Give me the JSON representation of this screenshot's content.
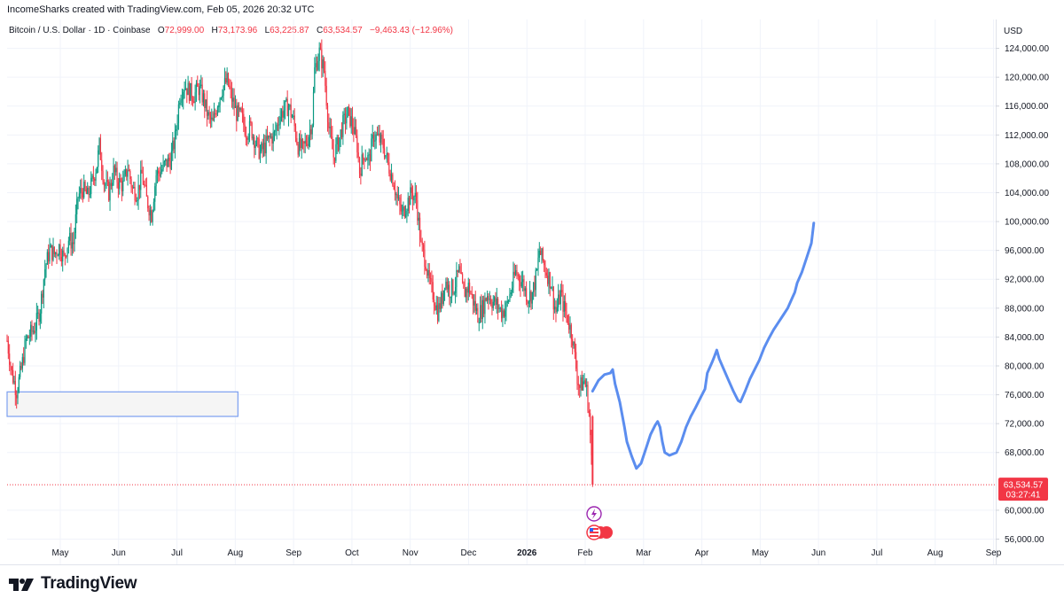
{
  "header": {
    "caption": "IncomeSharks created with TradingView.com, Feb 05, 2026 20:32 UTC"
  },
  "legend": {
    "symbol": "Bitcoin / U.S. Dollar · 1D · Coinbase",
    "o_label": "O",
    "o_value": "72,999.00",
    "h_label": "H",
    "h_value": "73,173.96",
    "l_label": "L",
    "l_value": "63,225.87",
    "c_label": "C",
    "c_value": "63,534.57",
    "change": "−9,463.43 (−12.96%)"
  },
  "currency": "USD",
  "price_tag": {
    "price": "63,534.57",
    "countdown": "03:27:41",
    "color": "#f23645"
  },
  "brand": {
    "name": "TradingView"
  },
  "colors": {
    "up": "#089981",
    "down": "#f23645",
    "projection": "#5b8def",
    "zone_border": "#7b9ff0",
    "zone_fill": "#f5f5f5"
  },
  "icons": [
    "flash-events-icon",
    "us-flag-event-icon"
  ],
  "chart_data": {
    "type": "candlestick",
    "y_axis": {
      "ticks": [
        "124,000.00",
        "120,000.00",
        "116,000.00",
        "112,000.00",
        "108,000.00",
        "104,000.00",
        "100,000.00",
        "96,000.00",
        "92,000.00",
        "88,000.00",
        "84,000.00",
        "80,000.00",
        "76,000.00",
        "72,000.00",
        "68,000.00",
        "60,000.00",
        "56,000.00"
      ],
      "range": [
        52500,
        128000
      ]
    },
    "x_axis": {
      "ticks": [
        "May",
        "Jun",
        "Jul",
        "Aug",
        "Sep",
        "Oct",
        "Nov",
        "Dec",
        "2026",
        "Feb",
        "Mar",
        "Apr",
        "May",
        "Jun",
        "Jul",
        "Aug",
        "Sep"
      ],
      "bold": [
        "2026"
      ]
    },
    "close_path": [
      [
        0,
        83500
      ],
      [
        4,
        79000
      ],
      [
        8,
        76500
      ],
      [
        12,
        79500
      ],
      [
        16,
        83500
      ],
      [
        20,
        84500
      ],
      [
        24,
        85500
      ],
      [
        28,
        88000
      ],
      [
        32,
        93500
      ],
      [
        36,
        96000
      ],
      [
        40,
        95500
      ],
      [
        44,
        96500
      ],
      [
        48,
        95000
      ],
      [
        52,
        97500
      ],
      [
        56,
        97000
      ],
      [
        60,
        103500
      ],
      [
        64,
        104500
      ],
      [
        68,
        103500
      ],
      [
        72,
        105500
      ],
      [
        76,
        108000
      ],
      [
        78,
        110500
      ],
      [
        82,
        105500
      ],
      [
        86,
        104000
      ],
      [
        90,
        107000
      ],
      [
        94,
        105500
      ],
      [
        98,
        105000
      ],
      [
        102,
        107500
      ],
      [
        106,
        104500
      ],
      [
        110,
        104000
      ],
      [
        114,
        106500
      ],
      [
        118,
        103000
      ],
      [
        122,
        101000
      ],
      [
        126,
        106500
      ],
      [
        130,
        107000
      ],
      [
        134,
        108000
      ],
      [
        138,
        108500
      ],
      [
        142,
        111500
      ],
      [
        146,
        117500
      ],
      [
        150,
        119000
      ],
      [
        154,
        118000
      ],
      [
        158,
        117500
      ],
      [
        162,
        118500
      ],
      [
        166,
        117000
      ],
      [
        170,
        114500
      ],
      [
        174,
        113500
      ],
      [
        178,
        116500
      ],
      [
        182,
        118500
      ],
      [
        186,
        119500
      ],
      [
        190,
        117000
      ],
      [
        194,
        115000
      ],
      [
        198,
        114500
      ],
      [
        202,
        112500
      ],
      [
        206,
        113000
      ],
      [
        210,
        111000
      ],
      [
        214,
        109500
      ],
      [
        218,
        110500
      ],
      [
        222,
        111500
      ],
      [
        226,
        112000
      ],
      [
        230,
        114500
      ],
      [
        234,
        115500
      ],
      [
        238,
        116000
      ],
      [
        242,
        114000
      ],
      [
        246,
        110500
      ],
      [
        250,
        110000
      ],
      [
        254,
        111500
      ],
      [
        258,
        114000
      ],
      [
        260,
        121000
      ],
      [
        264,
        123500
      ],
      [
        268,
        121000
      ],
      [
        272,
        113000
      ],
      [
        276,
        109000
      ],
      [
        280,
        111000
      ],
      [
        284,
        113500
      ],
      [
        288,
        115000
      ],
      [
        292,
        113500
      ],
      [
        296,
        110500
      ],
      [
        298,
        107000
      ],
      [
        302,
        109500
      ],
      [
        306,
        108500
      ],
      [
        310,
        112000
      ],
      [
        314,
        111500
      ],
      [
        318,
        110500
      ],
      [
        322,
        108000
      ],
      [
        326,
        106000
      ],
      [
        330,
        103000
      ],
      [
        334,
        101000
      ],
      [
        338,
        102500
      ],
      [
        342,
        104000
      ],
      [
        346,
        103000
      ],
      [
        350,
        96500
      ],
      [
        354,
        94500
      ],
      [
        356,
        92000
      ],
      [
        360,
        90000
      ],
      [
        364,
        87500
      ],
      [
        368,
        89500
      ],
      [
        370,
        92000
      ],
      [
        374,
        90500
      ],
      [
        378,
        91000
      ],
      [
        382,
        93000
      ],
      [
        386,
        90000
      ],
      [
        390,
        91000
      ],
      [
        394,
        89000
      ],
      [
        398,
        87000
      ],
      [
        402,
        88000
      ],
      [
        406,
        90000
      ],
      [
        410,
        89000
      ],
      [
        414,
        88500
      ],
      [
        418,
        87500
      ],
      [
        422,
        88000
      ],
      [
        426,
        90500
      ],
      [
        430,
        93000
      ],
      [
        434,
        92000
      ],
      [
        436,
        91500
      ],
      [
        440,
        89500
      ],
      [
        444,
        90000
      ],
      [
        448,
        93000
      ],
      [
        450,
        96000
      ],
      [
        452,
        95000
      ],
      [
        456,
        93000
      ],
      [
        460,
        91500
      ],
      [
        462,
        89000
      ],
      [
        464,
        87500
      ],
      [
        468,
        90000
      ],
      [
        470,
        88500
      ],
      [
        474,
        86500
      ],
      [
        478,
        84000
      ],
      [
        482,
        78500
      ],
      [
        484,
        77000
      ],
      [
        488,
        78000
      ],
      [
        490,
        76500
      ],
      [
        492,
        73500
      ],
      [
        495,
        63534.57
      ]
    ],
    "support_zone": {
      "top": 76400,
      "bottom": 73000,
      "start": "Apr",
      "end": "Aug"
    },
    "projection_path": [
      [
        495,
        76500
      ],
      [
        500,
        78000
      ],
      [
        505,
        78800
      ],
      [
        510,
        79000
      ],
      [
        512,
        79500
      ],
      [
        514,
        77500
      ],
      [
        518,
        75000
      ],
      [
        522,
        71500
      ],
      [
        524,
        69500
      ],
      [
        528,
        67500
      ],
      [
        532,
        65800
      ],
      [
        536,
        66500
      ],
      [
        540,
        68500
      ],
      [
        544,
        70500
      ],
      [
        548,
        71800
      ],
      [
        550,
        72300
      ],
      [
        552,
        71500
      ],
      [
        554,
        69500
      ],
      [
        556,
        68000
      ],
      [
        560,
        67600
      ],
      [
        566,
        68000
      ],
      [
        570,
        69500
      ],
      [
        574,
        71500
      ],
      [
        578,
        73000
      ],
      [
        582,
        74200
      ],
      [
        586,
        75500
      ],
      [
        590,
        76800
      ],
      [
        592,
        79000
      ],
      [
        596,
        80500
      ],
      [
        598,
        81300
      ],
      [
        600,
        82200
      ],
      [
        602,
        81000
      ],
      [
        606,
        79500
      ],
      [
        610,
        78000
      ],
      [
        614,
        76500
      ],
      [
        618,
        75200
      ],
      [
        620,
        75000
      ],
      [
        624,
        76500
      ],
      [
        628,
        78200
      ],
      [
        632,
        79500
      ],
      [
        636,
        80800
      ],
      [
        640,
        82500
      ],
      [
        644,
        83800
      ],
      [
        648,
        85000
      ],
      [
        652,
        86000
      ],
      [
        656,
        87000
      ],
      [
        660,
        88000
      ],
      [
        664,
        89500
      ],
      [
        666,
        90200
      ],
      [
        668,
        91500
      ],
      [
        672,
        93000
      ],
      [
        676,
        95000
      ],
      [
        680,
        97000
      ],
      [
        682,
        99800
      ]
    ],
    "last_price": 63534.57,
    "last_bar_open": 72999.0,
    "last_bar_high": 73173.96,
    "last_bar_low": 63225.87
  }
}
